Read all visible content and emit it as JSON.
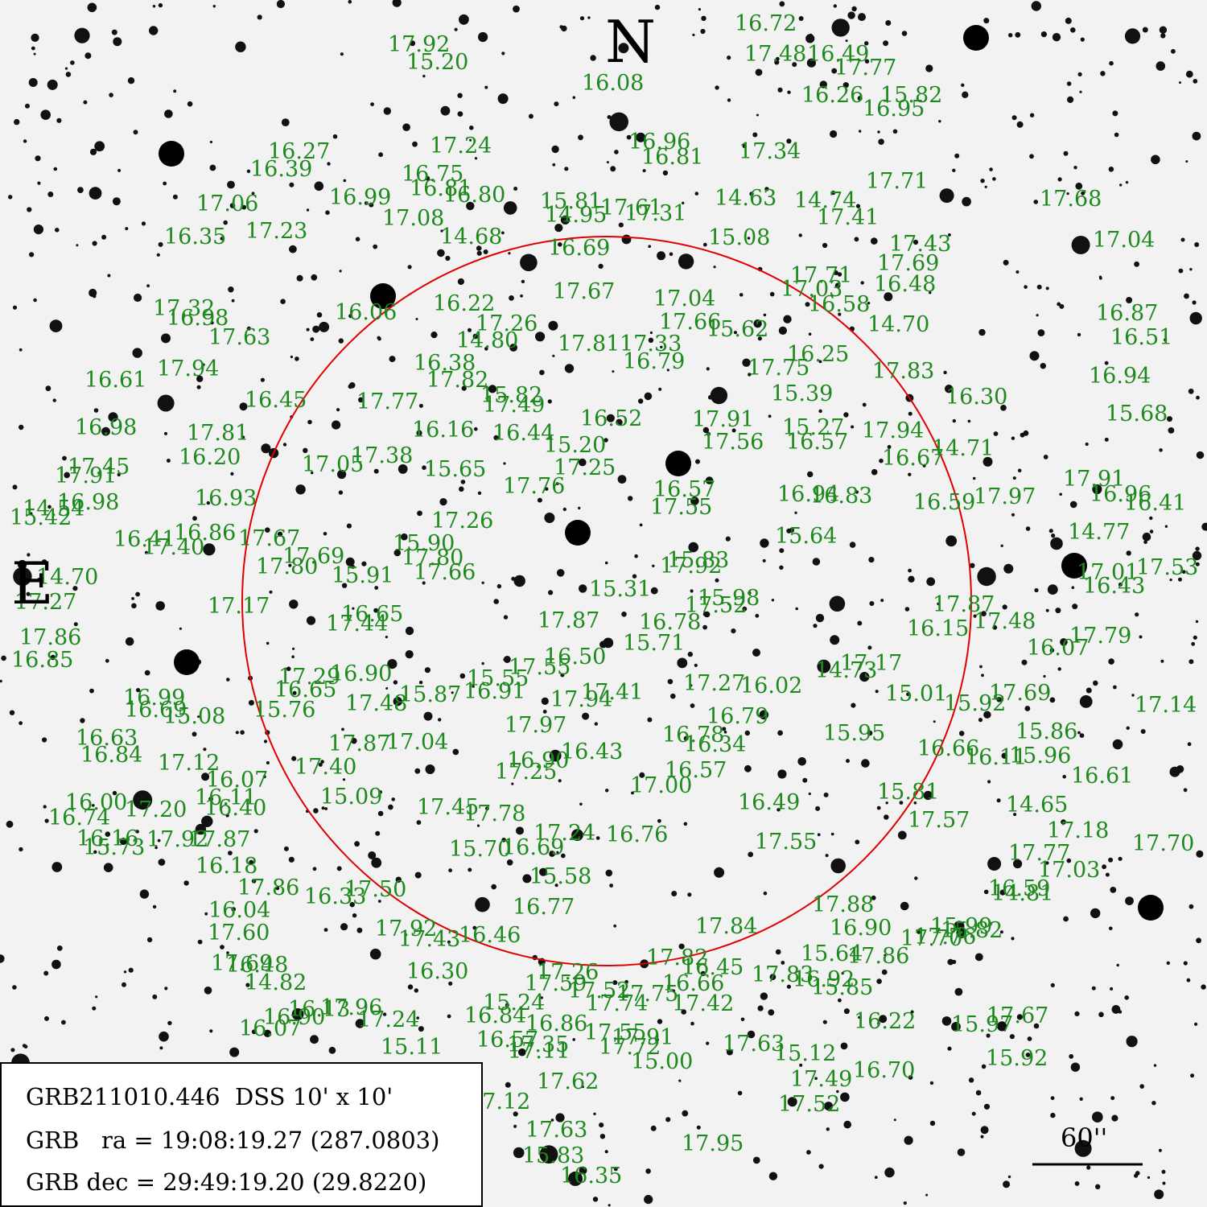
{
  "field": {
    "title": "GRB211010.446  DSS 10' x 10'",
    "ra_line": "GRB   ra = 19:08:19.27 (287.0803)",
    "dec_line": "GRB dec = 29:49:19.20 (29.8220)"
  },
  "compass": {
    "north": "N",
    "east": "E"
  },
  "scale_bar": {
    "label": "60''"
  },
  "colors": {
    "labels": "#1e8a1e",
    "error_circle": "#e00000",
    "background": "#f2f2f2",
    "stars": "#111111"
  },
  "magnitudes": [
    "17.92",
    "16.72",
    "16.49",
    "17.48",
    "17.77",
    "15.20",
    "16.08",
    "16.26",
    "15.82",
    "16.95",
    "16.27",
    "17.24",
    "16.96",
    "16.81",
    "17.34",
    "16.39",
    "16.75",
    "17.71",
    "16.81",
    "16.80",
    "17.06",
    "16.99",
    "17.08",
    "15.81",
    "17.61",
    "14.63",
    "14.74",
    "17.68",
    "16.35",
    "17.23",
    "14.68",
    "14.95",
    "17.31",
    "17.41",
    "15.08",
    "17.43",
    "17.04",
    "16.69",
    "17.69",
    "17.71",
    "16.48",
    "17.32",
    "16.06",
    "16.22",
    "17.67",
    "17.04",
    "17.03",
    "16.58",
    "16.87",
    "16.98",
    "17.26",
    "17.66",
    "15.62",
    "14.70",
    "16.51",
    "17.63",
    "14.80",
    "17.81",
    "17.33",
    "16.25",
    "16.94",
    "16.61",
    "17.94",
    "16.38",
    "17.82",
    "16.79",
    "17.75",
    "17.83",
    "16.30",
    "15.68",
    "17.77",
    "16.45",
    "15.82",
    "17.49",
    "15.39",
    "16.52",
    "17.91",
    "15.27",
    "17.94",
    "16.98",
    "17.81",
    "16.16",
    "16.44",
    "17.56",
    "16.57",
    "14.71",
    "16.20",
    "17.38",
    "15.20",
    "16.67",
    "17.45",
    "17.05",
    "15.65",
    "17.25",
    "16.57",
    "16.94",
    "17.97",
    "17.91",
    "16.98",
    "17.76",
    "17.55",
    "16.83",
    "16.59",
    "16.96",
    "14.54",
    "15.42",
    "16.93",
    "17.26",
    "16.41",
    "17.91",
    "16.41",
    "16.86",
    "17.40",
    "17.67",
    "15.90",
    "15.64",
    "14.77",
    "17.69",
    "17.80",
    "17.66",
    "15.83",
    "17.92",
    "17.01",
    "17.53",
    "14.70",
    "15.91",
    "17.80",
    "16.43",
    "17.27",
    "17.17",
    "16.65",
    "15.31",
    "15.98",
    "17.52",
    "17.87",
    "16.15",
    "17.48",
    "17.86",
    "17.44",
    "17.87",
    "16.78",
    "15.71",
    "16.07",
    "17.79",
    "16.85",
    "16.50",
    "17.55",
    "17.29",
    "16.90",
    "15.55",
    "17.27",
    "16.02",
    "17.17",
    "14.73",
    "15.87",
    "16.65",
    "16.91",
    "17.41",
    "17.94",
    "16.99",
    "16.69",
    "15.76",
    "17.48",
    "15.08",
    "15.01",
    "15.92",
    "17.69",
    "17.14",
    "16.79",
    "16.63",
    "17.97",
    "15.86",
    "16.78",
    "16.34",
    "17.87",
    "17.04",
    "16.43",
    "15.95",
    "16.66",
    "16.11",
    "15.96",
    "16.84",
    "17.12",
    "16.90",
    "17.25",
    "16.57",
    "17.40",
    "16.07",
    "16.61",
    "17.00",
    "16.11",
    "16.40",
    "15.09",
    "16.49",
    "15.81",
    "16.00",
    "17.20",
    "17.45",
    "17.78",
    "14.65",
    "16.74",
    "17.57",
    "17.18",
    "17.24",
    "16.76",
    "17.70",
    "16.16",
    "17.92",
    "17.87",
    "15.73",
    "15.70",
    "16.69",
    "17.55",
    "17.77",
    "17.03",
    "16.18",
    "15.58",
    "16.59",
    "14.81",
    "17.86",
    "17.50",
    "16.33",
    "16.04",
    "16.77",
    "17.88",
    "16.90",
    "15.99",
    "15.82",
    "17.76",
    "17.84",
    "17.60",
    "17.92",
    "17.43",
    "16.46",
    "15.64",
    "17.86",
    "17.70",
    "17.69",
    "16.48",
    "17.82",
    "16.45",
    "14.82",
    "16.30",
    "17.26",
    "17.59",
    "16.66",
    "17.83",
    "16.92",
    "15.85",
    "17.52",
    "17.75",
    "17.42",
    "16.13",
    "17.96",
    "15.24",
    "17.74",
    "16.90",
    "17.24",
    "16.84",
    "16.86",
    "16.22",
    "15.97",
    "17.67",
    "16.07",
    "17.55",
    "17.91",
    "15.11",
    "16.57",
    "17.35",
    "17.11",
    "17.72",
    "15.00",
    "17.63",
    "15.12",
    "15.92",
    "17.62",
    "17.49",
    "16.70",
    "17.52",
    "17.63",
    "17.95",
    "15.83",
    "16.35",
    "17.12"
  ]
}
